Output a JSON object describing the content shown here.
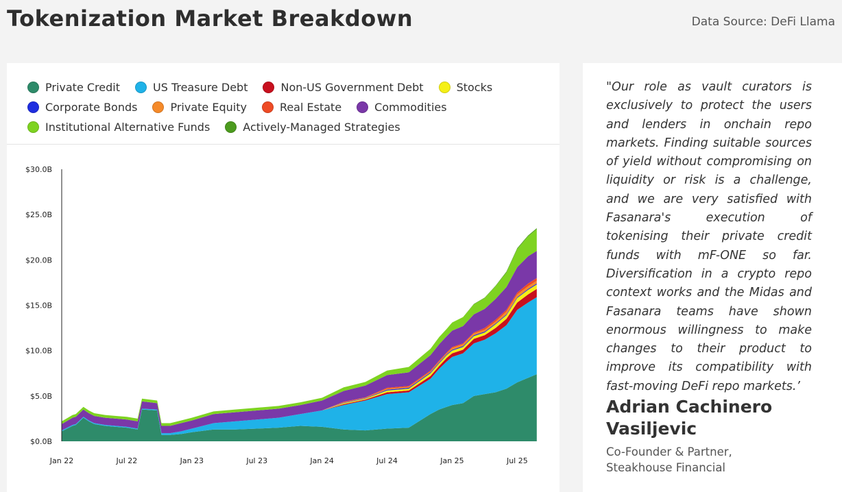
{
  "header": {
    "title": "Tokenization Market Breakdown",
    "source": "Data Source: DeFi Llama"
  },
  "legend": [
    {
      "label": "Private Credit",
      "color": "#2e8b6a"
    },
    {
      "label": "US Treasure Debt",
      "color": "#1fb2e8"
    },
    {
      "label": "Non-US Government Debt",
      "color": "#c8101e"
    },
    {
      "label": "Stocks",
      "color": "#f5f016"
    },
    {
      "label": "Corporate Bonds",
      "color": "#1f2ee0"
    },
    {
      "label": "Private Equity",
      "color": "#f58a2a"
    },
    {
      "label": "Real Estate",
      "color": "#ee4b25"
    },
    {
      "label": "Commodities",
      "color": "#7a38a8"
    },
    {
      "label": "Institutional Alternative Funds",
      "color": "#7ed321"
    },
    {
      "label": "Actively-Managed Strategies",
      "color": "#4c9b1e"
    }
  ],
  "chart_data": {
    "type": "area",
    "stacked": true,
    "title": "Tokenization Market Breakdown",
    "ylim": [
      0,
      30
    ],
    "yunit": "$B",
    "y_ticks": [
      "$0.0B",
      "$5.0B",
      "$10.0B",
      "$15.0B",
      "$20.0B",
      "$25.0B",
      "$30.0B"
    ],
    "x_ticks": [
      "Jan 22",
      "Jul 22",
      "Jan 23",
      "Jul 23",
      "Jan 24",
      "Jul 24",
      "Jan 25",
      "Jul 25"
    ],
    "x": [
      0,
      1,
      1.3,
      2,
      2.5,
      3,
      4,
      5,
      6,
      7,
      7.4,
      8.8,
      9.2,
      10,
      11,
      12,
      14,
      16,
      18,
      20,
      22,
      24,
      26,
      28,
      30,
      32,
      34,
      34.8,
      35.5,
      36,
      37,
      38,
      39,
      40,
      41,
      42,
      43,
      43.8
    ],
    "series": [
      {
        "name": "Private Credit",
        "values": [
          1.1,
          1.7,
          1.8,
          2.6,
          2.2,
          1.9,
          1.7,
          1.6,
          1.5,
          1.3,
          3.5,
          3.4,
          0.7,
          0.7,
          0.8,
          1.0,
          1.3,
          1.3,
          1.4,
          1.5,
          1.7,
          1.6,
          1.3,
          1.2,
          1.4,
          1.5,
          3.0,
          3.5,
          3.8,
          4.0,
          4.2,
          5.0,
          5.2,
          5.4,
          5.8,
          6.5,
          7.0,
          7.4
        ]
      },
      {
        "name": "US Treasure Debt",
        "values": [
          0.1,
          0.1,
          0.1,
          0.1,
          0.1,
          0.1,
          0.1,
          0.1,
          0.1,
          0.1,
          0.1,
          0.1,
          0.2,
          0.2,
          0.3,
          0.4,
          0.7,
          0.9,
          1.0,
          1.1,
          1.3,
          1.8,
          2.7,
          3.3,
          3.8,
          3.9,
          3.9,
          4.5,
          5.0,
          5.3,
          5.5,
          5.8,
          6.0,
          6.5,
          7.0,
          8.0,
          8.3,
          8.5
        ]
      },
      {
        "name": "Non-US Government Debt",
        "values": [
          0,
          0,
          0,
          0,
          0,
          0,
          0,
          0,
          0,
          0,
          0,
          0,
          0,
          0,
          0,
          0,
          0,
          0,
          0,
          0,
          0,
          0,
          0.1,
          0.1,
          0.2,
          0.2,
          0.3,
          0.3,
          0.4,
          0.4,
          0.4,
          0.5,
          0.5,
          0.6,
          0.7,
          0.8,
          0.9,
          0.9
        ]
      },
      {
        "name": "Stocks",
        "values": [
          0,
          0,
          0,
          0,
          0,
          0,
          0,
          0,
          0,
          0,
          0,
          0,
          0,
          0,
          0,
          0,
          0,
          0,
          0,
          0,
          0,
          0,
          0.1,
          0.1,
          0.2,
          0.2,
          0.3,
          0.3,
          0.3,
          0.3,
          0.3,
          0.3,
          0.3,
          0.4,
          0.4,
          0.5,
          0.5,
          0.5
        ]
      },
      {
        "name": "Corporate Bonds",
        "values": [
          0,
          0,
          0,
          0,
          0,
          0,
          0,
          0,
          0,
          0,
          0,
          0,
          0,
          0,
          0,
          0,
          0,
          0,
          0,
          0,
          0,
          0,
          0.05,
          0.05,
          0.1,
          0.1,
          0.1,
          0.1,
          0.1,
          0.1,
          0.1,
          0.1,
          0.1,
          0.1,
          0.1,
          0.1,
          0.1,
          0.1
        ]
      },
      {
        "name": "Private Equity",
        "values": [
          0,
          0,
          0,
          0,
          0,
          0,
          0,
          0,
          0,
          0,
          0,
          0,
          0,
          0,
          0,
          0,
          0,
          0,
          0,
          0,
          0,
          0,
          0.05,
          0.05,
          0.1,
          0.1,
          0.1,
          0.1,
          0.1,
          0.2,
          0.2,
          0.2,
          0.2,
          0.2,
          0.3,
          0.3,
          0.3,
          0.3
        ]
      },
      {
        "name": "Real Estate",
        "values": [
          0,
          0,
          0,
          0,
          0,
          0,
          0,
          0,
          0,
          0,
          0,
          0,
          0,
          0,
          0,
          0,
          0,
          0,
          0,
          0,
          0,
          0,
          0.05,
          0.05,
          0.1,
          0.1,
          0.1,
          0.1,
          0.1,
          0.1,
          0.1,
          0.1,
          0.2,
          0.2,
          0.2,
          0.2,
          0.3,
          0.3
        ]
      },
      {
        "name": "Commodities",
        "values": [
          0.7,
          0.8,
          0.8,
          0.8,
          0.8,
          0.8,
          0.8,
          0.8,
          0.8,
          0.8,
          0.8,
          0.7,
          0.8,
          0.8,
          0.9,
          0.9,
          1.0,
          1.0,
          1.0,
          1.0,
          1.0,
          1.1,
          1.2,
          1.3,
          1.4,
          1.5,
          1.7,
          1.8,
          1.8,
          1.8,
          1.9,
          2.0,
          2.1,
          2.3,
          2.5,
          2.8,
          3.0,
          3.0
        ]
      },
      {
        "name": "Institutional Alternative Funds",
        "values": [
          0.3,
          0.3,
          0.3,
          0.3,
          0.3,
          0.3,
          0.3,
          0.3,
          0.3,
          0.3,
          0.3,
          0.3,
          0.3,
          0.3,
          0.3,
          0.3,
          0.3,
          0.3,
          0.3,
          0.3,
          0.3,
          0.3,
          0.4,
          0.4,
          0.5,
          0.6,
          0.7,
          0.8,
          0.8,
          0.9,
          1.0,
          1.1,
          1.2,
          1.4,
          1.6,
          2.0,
          2.2,
          2.4
        ]
      },
      {
        "name": "Actively-Managed Strategies",
        "values": [
          0,
          0,
          0,
          0,
          0,
          0,
          0,
          0,
          0,
          0,
          0,
          0,
          0,
          0,
          0,
          0,
          0,
          0,
          0,
          0,
          0,
          0,
          0,
          0,
          0,
          0,
          0,
          0,
          0,
          0,
          0,
          0.05,
          0.05,
          0.05,
          0.1,
          0.1,
          0.1,
          0.1
        ]
      }
    ]
  },
  "quote": {
    "text": "\"Our role as vault curators is exclusively to protect the users and lenders in onchain repo markets. Finding suitable sources of yield without compromising on liquidity or risk is a challenge, and we are very satisfied with Fasanara's execution of tokenising their private  credit funds with mF-ONE so far. Diversification in a crypto repo context works and the Midas and Fasanara teams have shown enormous willingness to make changes to their product to improve its compatibility with fast-moving DeFi repo markets.’",
    "author": "Adrian Cachinero Vasiljevic",
    "role_line1": "Co-Founder & Partner,",
    "role_line2": "Steakhouse Financial"
  }
}
